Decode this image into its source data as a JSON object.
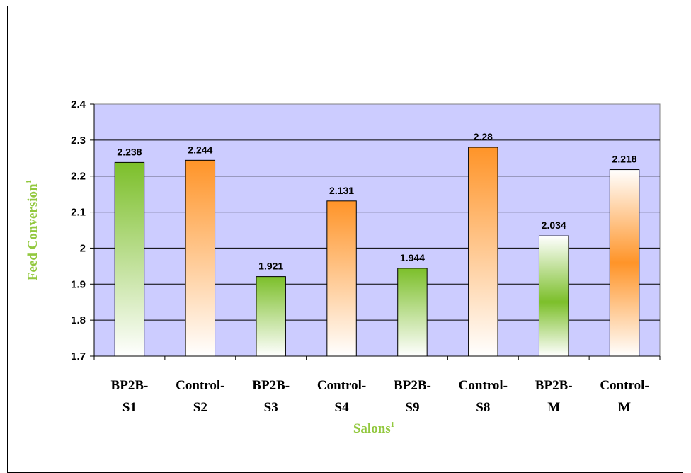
{
  "chart_data": {
    "type": "bar",
    "title": "",
    "xlabel": "Salons",
    "xlabel_sup": "1",
    "ylabel": "Feed Conversion",
    "ylabel_sup": "1",
    "ylim": [
      1.7,
      2.4
    ],
    "yticks": [
      "1.7",
      "1.8",
      "1.9",
      "2",
      "2.1",
      "2.2",
      "2.3",
      "2.4"
    ],
    "grid": true,
    "plot_background": "#ccccff",
    "categories": [
      [
        "BP2B-",
        "S1"
      ],
      [
        "Control-",
        "S2"
      ],
      [
        "BP2B-",
        "S3"
      ],
      [
        "Control-",
        "S4"
      ],
      [
        "BP2B-",
        "S9"
      ],
      [
        "Control-",
        "S8"
      ],
      [
        "BP2B-",
        "M"
      ],
      [
        "Control-",
        "M"
      ]
    ],
    "values": [
      2.238,
      2.244,
      1.921,
      2.131,
      1.944,
      2.28,
      2.034,
      2.218
    ],
    "value_labels": [
      "2.238",
      "2.244",
      "1.921",
      "2.131",
      "1.944",
      "2.28",
      "2.034",
      "2.218"
    ],
    "bar_fill_styles": [
      "green-vertical",
      "orange-vertical",
      "green-vertical",
      "orange-vertical",
      "green-vertical",
      "orange-vertical",
      "green-center",
      "orange-center"
    ],
    "colors": {
      "green": "#7cbf2a",
      "orange": "#ff9428",
      "axis_title": "#92c83e"
    }
  }
}
